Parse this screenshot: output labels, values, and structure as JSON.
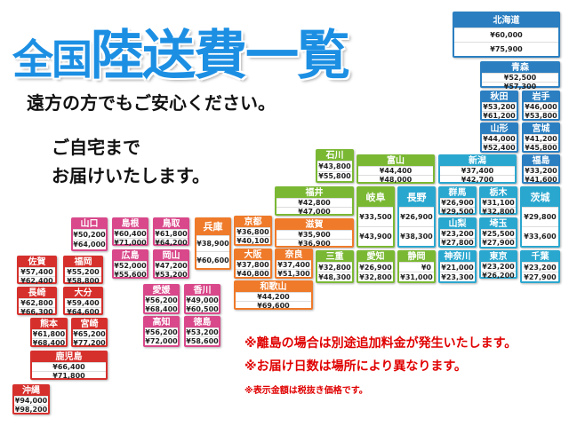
{
  "title": {
    "part1": "全国",
    "part2": "陸送費一覧"
  },
  "subtitle": "遠方の方でもご安心ください。",
  "delivery_line1": "ご自宅まで",
  "delivery_line2": "お届けいたします。",
  "notes": [
    "※離島の場合は別途追加料金が発生いたします。",
    "※お届け日数は場所により異なります。",
    "※表示金額は税抜き価格です。"
  ],
  "region_colors": {
    "hokkaido_tohoku": "#2b7fc1",
    "kanto": "#2aa7cf",
    "chubu": "#7ab833",
    "kinki": "#ef7a2a",
    "chugoku_shikoku": "#d9488a",
    "kyushu_okinawa": "#d6302d"
  },
  "prefectures": [
    {
      "name": "北海道",
      "region": "hokkaido_tohoku",
      "prices": [
        "¥60,000",
        "¥75,900"
      ]
    },
    {
      "name": "青森",
      "region": "hokkaido_tohoku",
      "prices": [
        "¥52,500",
        "¥57,300"
      ]
    },
    {
      "name": "秋田",
      "region": "hokkaido_tohoku",
      "prices": [
        "¥53,200",
        "¥61,200"
      ]
    },
    {
      "name": "岩手",
      "region": "hokkaido_tohoku",
      "prices": [
        "¥46,000",
        "¥53,800"
      ]
    },
    {
      "name": "山形",
      "region": "hokkaido_tohoku",
      "prices": [
        "¥44,000",
        "¥52,400"
      ]
    },
    {
      "name": "宮城",
      "region": "hokkaido_tohoku",
      "prices": [
        "¥41,200",
        "¥45,800"
      ]
    },
    {
      "name": "新潟",
      "region": "kanto",
      "prices": [
        "¥37,400",
        "¥42,700"
      ]
    },
    {
      "name": "福島",
      "region": "hokkaido_tohoku",
      "prices": [
        "¥33,200",
        "¥41,600"
      ]
    },
    {
      "name": "石川",
      "region": "chubu",
      "prices": [
        "¥43,800",
        "¥55,800"
      ]
    },
    {
      "name": "富山",
      "region": "chubu",
      "prices": [
        "¥44,400",
        "¥48,000"
      ]
    },
    {
      "name": "福井",
      "region": "chubu",
      "prices": [
        "¥42,800",
        "¥47,000"
      ]
    },
    {
      "name": "岐阜",
      "region": "chubu",
      "prices": [
        "¥33,500",
        "¥43,900"
      ]
    },
    {
      "name": "長野",
      "region": "kanto",
      "prices": [
        "¥26,900",
        "¥38,300"
      ]
    },
    {
      "name": "群馬",
      "region": "kanto",
      "prices": [
        "¥26,900",
        "¥29,500"
      ]
    },
    {
      "name": "栃木",
      "region": "kanto",
      "prices": [
        "¥31,100",
        "¥32,800"
      ]
    },
    {
      "name": "茨城",
      "region": "kanto",
      "prices": [
        "¥29,800",
        "¥33,600"
      ]
    },
    {
      "name": "山梨",
      "region": "kanto",
      "prices": [
        "¥23,200",
        "¥27,800"
      ]
    },
    {
      "name": "埼玉",
      "region": "kanto",
      "prices": [
        "¥25,500",
        "¥27,900"
      ]
    },
    {
      "name": "滋賀",
      "region": "kinki",
      "prices": [
        "¥35,900",
        "¥36,900"
      ]
    },
    {
      "name": "京都",
      "region": "kinki",
      "prices": [
        "¥36,800",
        "¥40,100"
      ]
    },
    {
      "name": "大阪",
      "region": "kinki",
      "prices": [
        "¥37,800",
        "¥40,800"
      ]
    },
    {
      "name": "奈良",
      "region": "kinki",
      "prices": [
        "¥37,400",
        "¥51,300"
      ]
    },
    {
      "name": "和歌山",
      "region": "kinki",
      "prices": [
        "¥44,200",
        "¥69,600"
      ]
    },
    {
      "name": "兵庫",
      "region": "kinki",
      "prices": [
        "¥38,900",
        "¥60,600"
      ]
    },
    {
      "name": "三重",
      "region": "chubu",
      "prices": [
        "¥32,800",
        "¥48,300"
      ]
    },
    {
      "name": "愛知",
      "region": "chubu",
      "prices": [
        "¥26,900",
        "¥32,800"
      ]
    },
    {
      "name": "静岡",
      "region": "chubu",
      "prices": [
        "¥0",
        "¥31,000"
      ]
    },
    {
      "name": "神奈川",
      "region": "kanto",
      "prices": [
        "¥21,000",
        "¥23,300"
      ]
    },
    {
      "name": "東京",
      "region": "kanto",
      "prices": [
        "¥23,200",
        "¥26,200"
      ]
    },
    {
      "name": "千葉",
      "region": "kanto",
      "prices": [
        "¥23,200",
        "¥27,900"
      ]
    },
    {
      "name": "山口",
      "region": "chugoku_shikoku",
      "prices": [
        "¥50,200",
        "¥64,000"
      ]
    },
    {
      "name": "島根",
      "region": "chugoku_shikoku",
      "prices": [
        "¥60,400",
        "¥71,000"
      ]
    },
    {
      "name": "鳥取",
      "region": "chugoku_shikoku",
      "prices": [
        "¥61,800",
        "¥64,200"
      ]
    },
    {
      "name": "広島",
      "region": "chugoku_shikoku",
      "prices": [
        "¥52,000",
        "¥55,600"
      ]
    },
    {
      "name": "岡山",
      "region": "chugoku_shikoku",
      "prices": [
        "¥47,200",
        "¥53,200"
      ]
    },
    {
      "name": "愛媛",
      "region": "chugoku_shikoku",
      "prices": [
        "¥56,200",
        "¥68,400"
      ]
    },
    {
      "name": "香川",
      "region": "chugoku_shikoku",
      "prices": [
        "¥49,000",
        "¥60,500"
      ]
    },
    {
      "name": "高知",
      "region": "chugoku_shikoku",
      "prices": [
        "¥56,200",
        "¥72,000"
      ]
    },
    {
      "name": "徳島",
      "region": "chugoku_shikoku",
      "prices": [
        "¥53,200",
        "¥58,600"
      ]
    },
    {
      "name": "佐賀",
      "region": "kyushu_okinawa",
      "prices": [
        "¥57,400",
        "¥62,400"
      ]
    },
    {
      "name": "福岡",
      "region": "kyushu_okinawa",
      "prices": [
        "¥55,200",
        "¥58,800"
      ]
    },
    {
      "name": "長崎",
      "region": "kyushu_okinawa",
      "prices": [
        "¥62,800",
        "¥66,300"
      ]
    },
    {
      "name": "大分",
      "region": "kyushu_okinawa",
      "prices": [
        "¥59,400",
        "¥64,600"
      ]
    },
    {
      "name": "熊本",
      "region": "kyushu_okinawa",
      "prices": [
        "¥61,800",
        "¥68,400"
      ]
    },
    {
      "name": "宮崎",
      "region": "kyushu_okinawa",
      "prices": [
        "¥65,200",
        "¥77,200"
      ]
    },
    {
      "name": "鹿児島",
      "region": "kyushu_okinawa",
      "prices": [
        "¥66,400",
        "¥71,800"
      ]
    },
    {
      "name": "沖縄",
      "region": "kyushu_okinawa",
      "prices": [
        "¥94,000",
        "¥98,200"
      ]
    }
  ]
}
